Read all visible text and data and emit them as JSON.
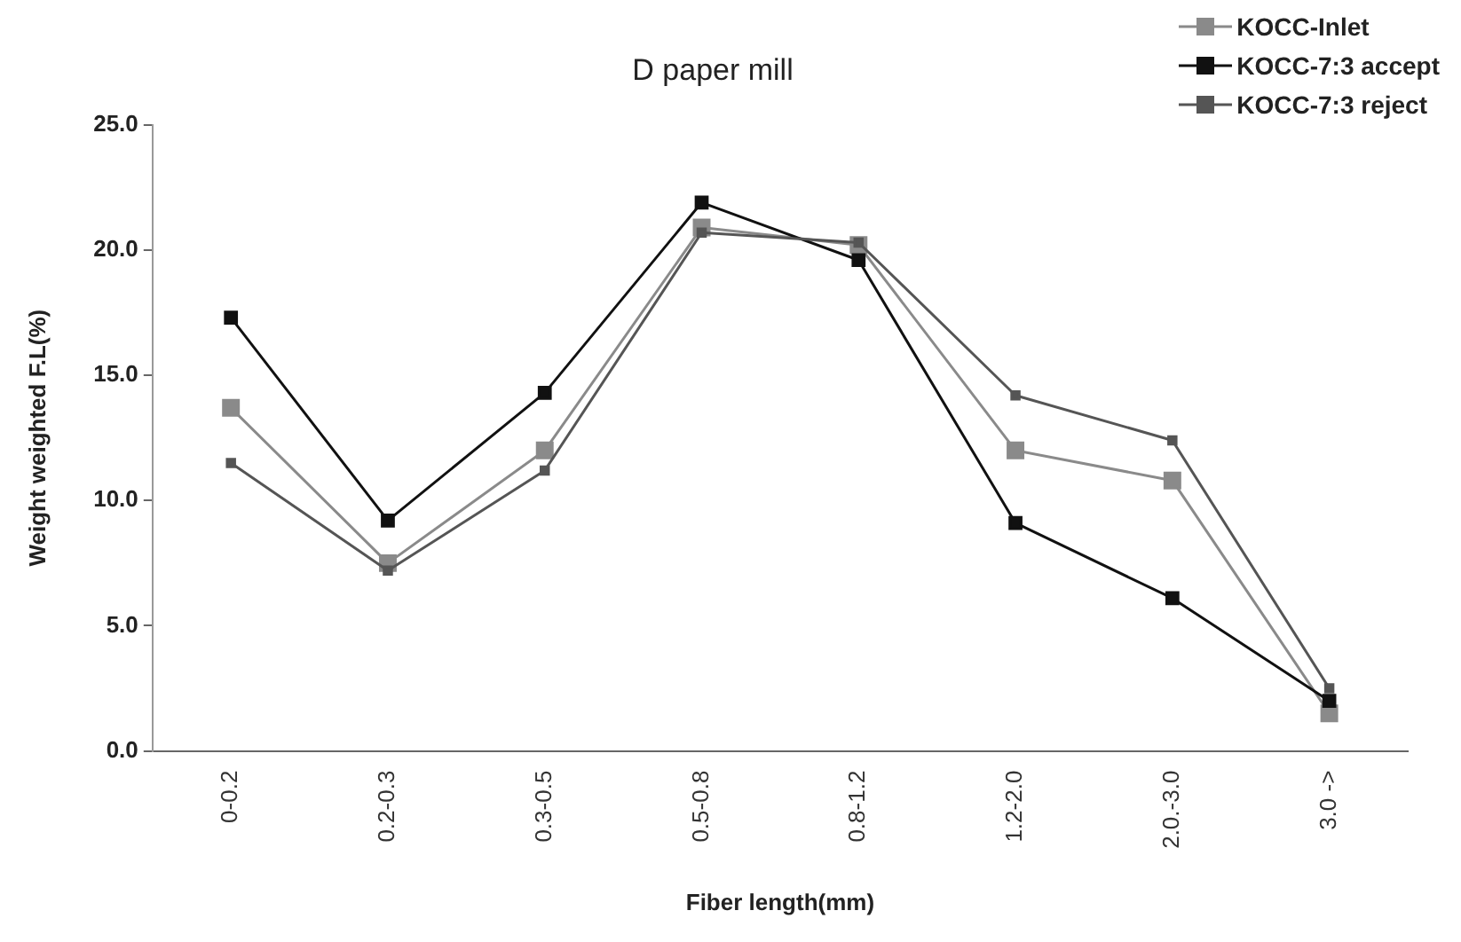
{
  "chart_data": {
    "type": "line",
    "title": "D paper mill",
    "xlabel": "Fiber length(mm)",
    "ylabel": "Weight weighted F.L(%)",
    "categories": [
      "0-0.2",
      "0.2-0.3",
      "0.3-0.5",
      "0.5-0.8",
      "0.8-1.2",
      "1.2-2.0",
      "2.0.-3.0",
      "3.0 ->"
    ],
    "series": [
      {
        "name": "KOCC-Inlet",
        "color": "#8a8a8a",
        "values": [
          13.7,
          7.5,
          12.0,
          20.9,
          20.2,
          12.0,
          10.8,
          1.5
        ]
      },
      {
        "name": "KOCC-7:3 accept",
        "color": "#111111",
        "values": [
          17.3,
          9.2,
          14.3,
          21.9,
          19.6,
          9.1,
          6.1,
          2.0
        ]
      },
      {
        "name": "KOCC-7:3 reject",
        "color": "#555555",
        "values": [
          11.5,
          7.2,
          11.2,
          20.7,
          20.3,
          14.2,
          12.4,
          2.5
        ]
      }
    ],
    "ylim": [
      0,
      25
    ],
    "yticks": [
      {
        "value": 0,
        "label": "0.0"
      },
      {
        "value": 5,
        "label": "5.0"
      },
      {
        "value": 10,
        "label": "10.0"
      },
      {
        "value": 15,
        "label": "15.0"
      },
      {
        "value": 20,
        "label": "20.0"
      },
      {
        "value": 25,
        "label": "25.0"
      }
    ],
    "grid": false,
    "legend": "top right",
    "marker": "square",
    "line_style": "solid"
  }
}
